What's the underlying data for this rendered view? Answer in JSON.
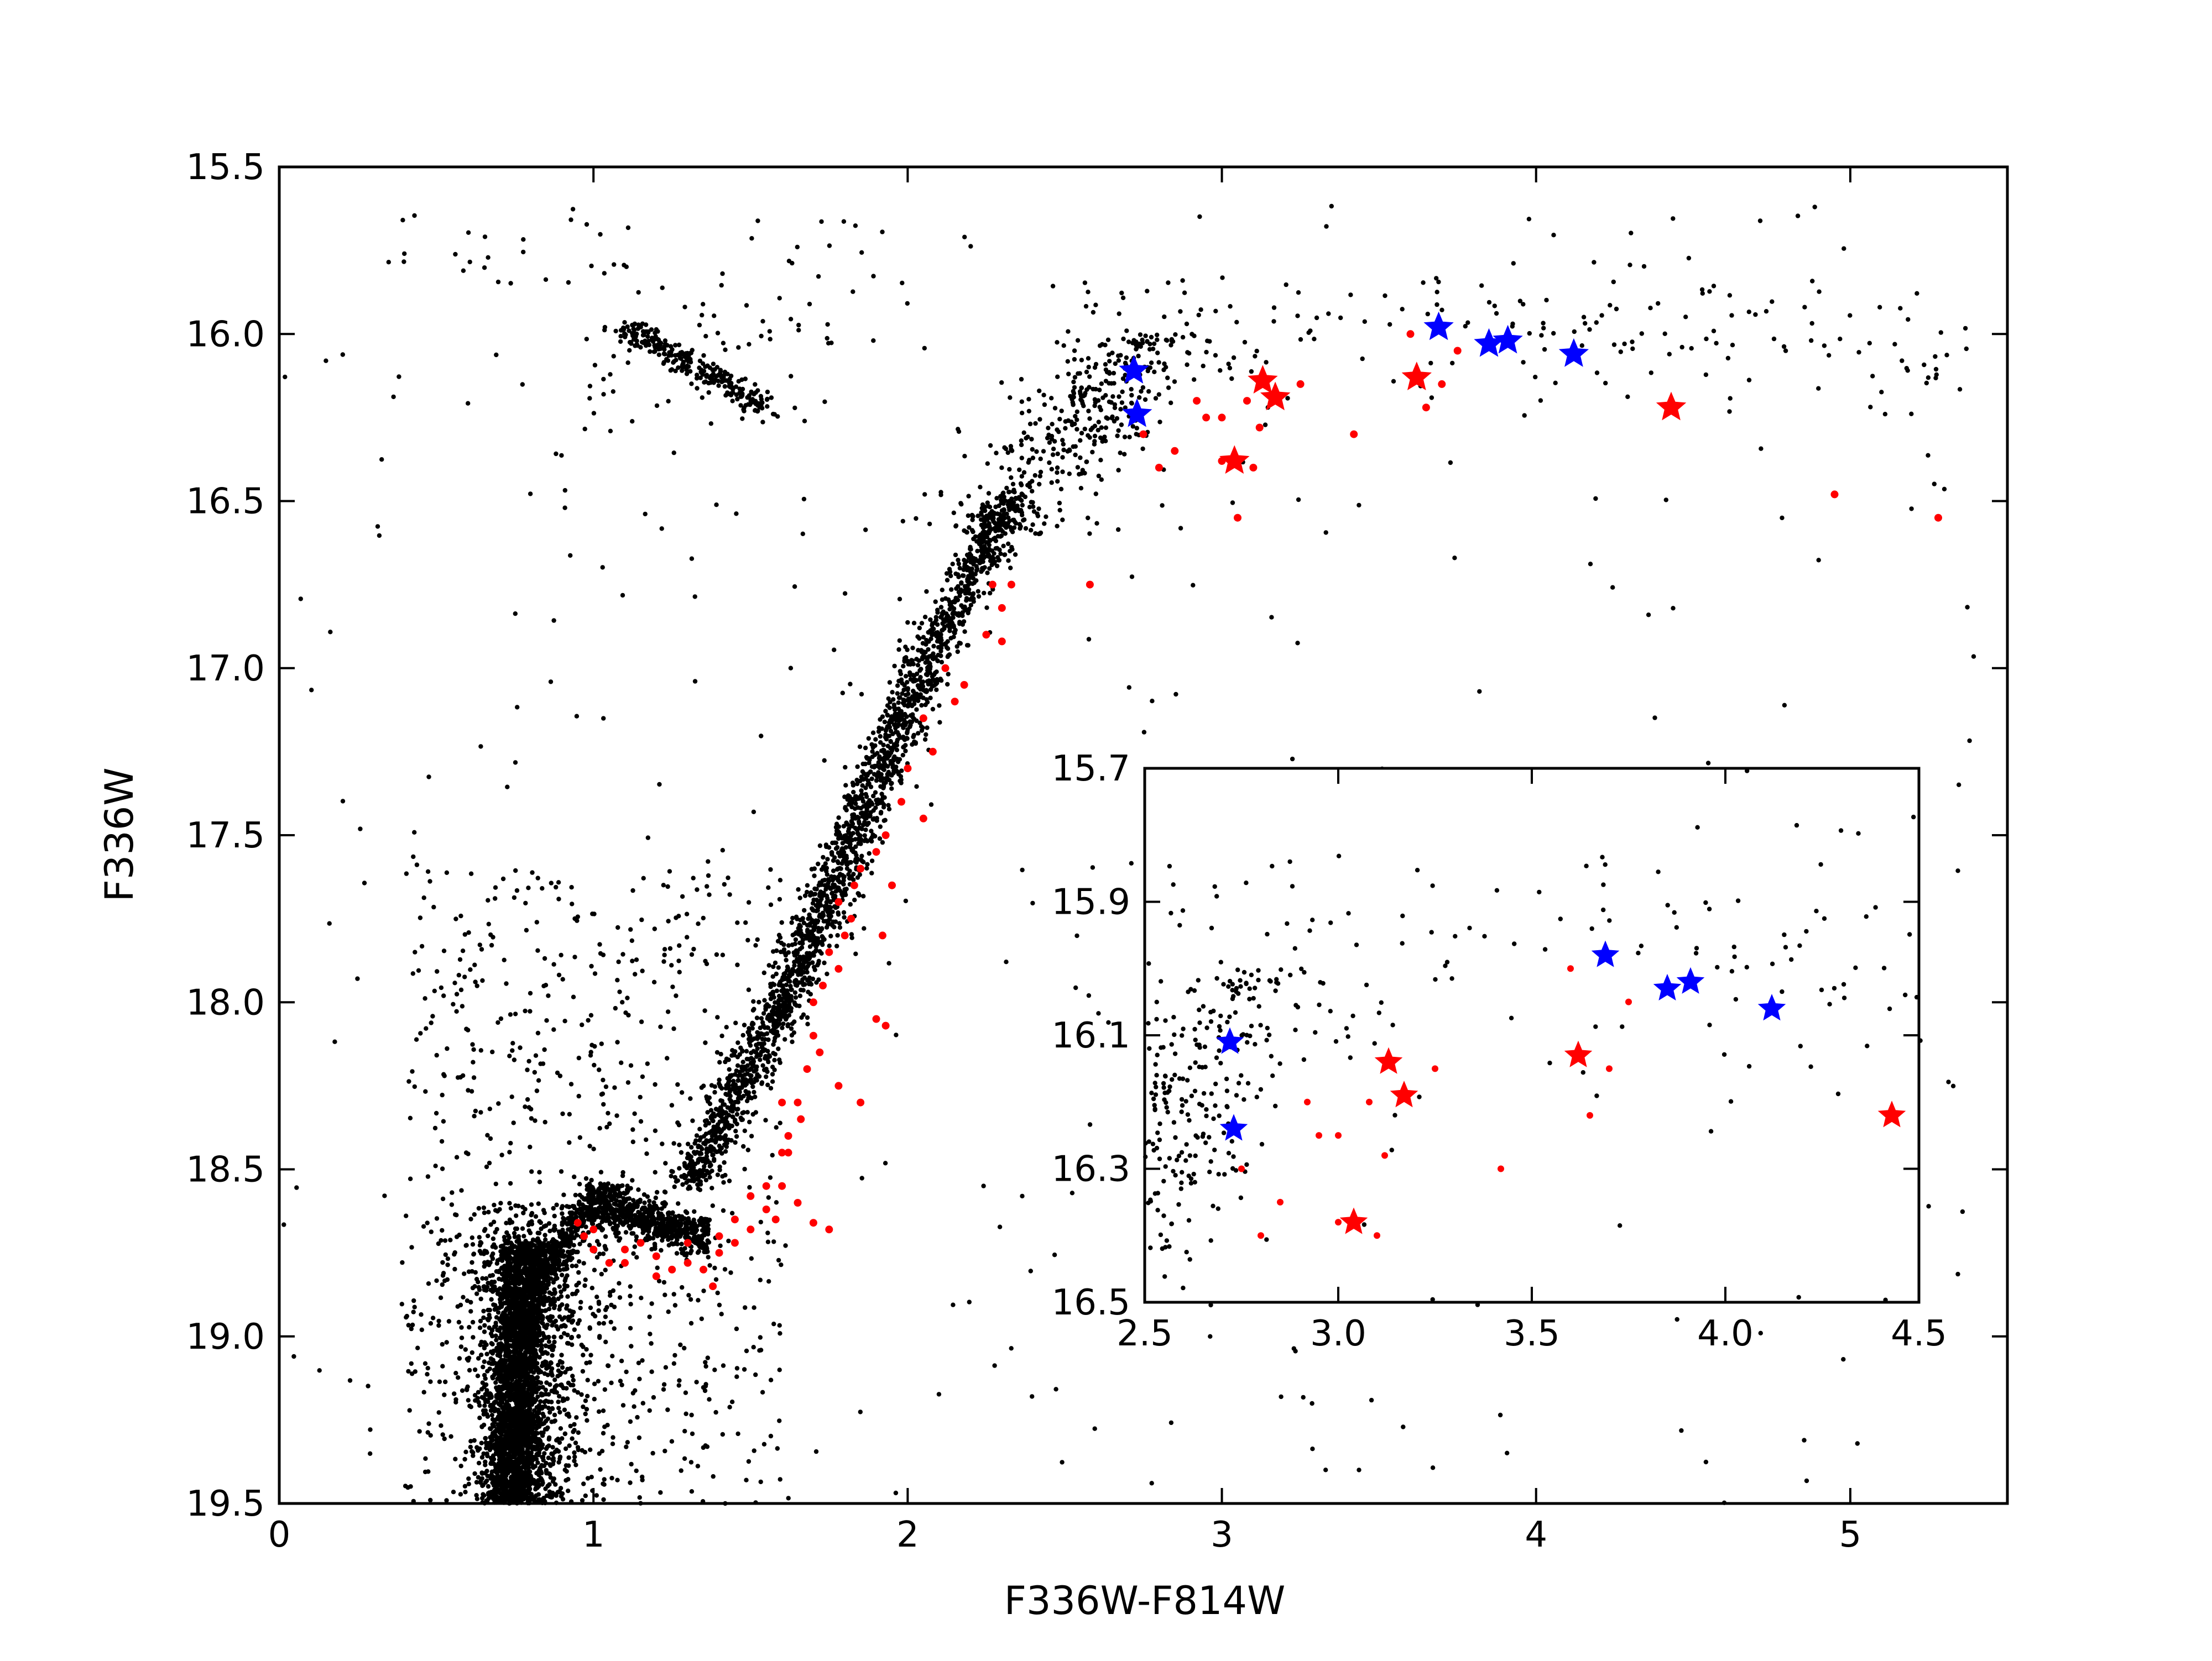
{
  "chart_data": {
    "type": "scatter",
    "title": "",
    "xlabel": "F336W-F814W",
    "ylabel": "F336W",
    "xlim": [
      0,
      5.5
    ],
    "ylim": [
      19.5,
      15.5
    ],
    "y_inverted": true,
    "x_ticks": [
      0,
      1,
      2,
      3,
      4,
      5
    ],
    "x_tick_labels": [
      "0",
      "1",
      "2",
      "3",
      "4",
      "5"
    ],
    "y_ticks": [
      15.5,
      16.0,
      16.5,
      17.0,
      17.5,
      18.0,
      18.5,
      19.0,
      19.5
    ],
    "y_tick_labels": [
      "15.5",
      "16.0",
      "16.5",
      "17.0",
      "17.5",
      "18.0",
      "18.5",
      "19.0",
      "19.5"
    ],
    "grid": false,
    "legend": "none",
    "colors": {
      "background_stars": "#000000",
      "red_points": "#ff0000",
      "red_stars": "#ff0000",
      "blue_stars": "#0000ff"
    },
    "series": [
      {
        "marker": "dot",
        "color": "#ff0000",
        "points": [
          [
            2.27,
            16.75
          ],
          [
            2.3,
            16.82
          ],
          [
            2.33,
            16.75
          ],
          [
            2.25,
            16.9
          ],
          [
            2.3,
            16.92
          ],
          [
            2.18,
            17.05
          ],
          [
            2.12,
            17.0
          ],
          [
            2.15,
            17.1
          ],
          [
            2.05,
            17.15
          ],
          [
            2.08,
            17.25
          ],
          [
            2.0,
            17.3
          ],
          [
            1.98,
            17.4
          ],
          [
            1.93,
            17.5
          ],
          [
            1.9,
            17.55
          ],
          [
            2.05,
            17.45
          ],
          [
            1.85,
            17.6
          ],
          [
            1.83,
            17.65
          ],
          [
            1.78,
            17.7
          ],
          [
            1.8,
            17.8
          ],
          [
            1.75,
            17.85
          ],
          [
            1.73,
            17.95
          ],
          [
            1.78,
            17.9
          ],
          [
            1.82,
            17.75
          ],
          [
            1.7,
            18.1
          ],
          [
            1.68,
            18.2
          ],
          [
            1.65,
            18.3
          ],
          [
            1.62,
            18.4
          ],
          [
            1.6,
            18.45
          ],
          [
            1.7,
            18.0
          ],
          [
            1.72,
            18.15
          ],
          [
            1.66,
            18.35
          ],
          [
            1.9,
            18.05
          ],
          [
            1.93,
            18.07
          ],
          [
            1.78,
            18.25
          ],
          [
            1.85,
            18.3
          ],
          [
            1.92,
            17.8
          ],
          [
            1.95,
            17.65
          ],
          [
            1.6,
            18.55
          ],
          [
            1.65,
            18.6
          ],
          [
            1.55,
            18.62
          ],
          [
            1.5,
            18.68
          ],
          [
            1.45,
            18.72
          ],
          [
            1.4,
            18.75
          ],
          [
            1.35,
            18.8
          ],
          [
            1.3,
            18.78
          ],
          [
            1.25,
            18.8
          ],
          [
            1.2,
            18.76
          ],
          [
            1.15,
            18.72
          ],
          [
            1.1,
            18.74
          ],
          [
            1.05,
            18.78
          ],
          [
            1.0,
            18.74
          ],
          [
            0.97,
            18.7
          ],
          [
            0.95,
            18.66
          ],
          [
            1.0,
            18.68
          ],
          [
            1.1,
            18.78
          ],
          [
            1.2,
            18.82
          ],
          [
            1.3,
            18.72
          ],
          [
            1.4,
            18.7
          ],
          [
            1.5,
            18.58
          ],
          [
            1.55,
            18.55
          ],
          [
            1.58,
            18.65
          ],
          [
            1.7,
            18.66
          ],
          [
            1.75,
            18.68
          ],
          [
            1.45,
            18.65
          ],
          [
            1.38,
            18.85
          ],
          [
            1.6,
            18.3
          ],
          [
            1.62,
            18.45
          ],
          [
            2.58,
            16.75
          ],
          [
            2.75,
            16.3
          ],
          [
            2.85,
            16.35
          ],
          [
            2.8,
            16.4
          ],
          [
            2.92,
            16.2
          ],
          [
            3.0,
            16.25
          ],
          [
            3.08,
            16.2
          ],
          [
            3.12,
            16.28
          ],
          [
            3.05,
            16.55
          ],
          [
            3.65,
            16.22
          ],
          [
            3.7,
            16.15
          ],
          [
            3.75,
            16.05
          ],
          [
            3.6,
            16.0
          ],
          [
            3.42,
            16.3
          ],
          [
            4.95,
            16.48
          ],
          [
            5.28,
            16.55
          ],
          [
            3.25,
            16.15
          ],
          [
            3.0,
            16.38
          ],
          [
            3.1,
            16.4
          ],
          [
            2.95,
            16.25
          ]
        ]
      },
      {
        "marker": "star",
        "color": "#ff0000",
        "points": [
          [
            3.04,
            16.38
          ],
          [
            3.13,
            16.14
          ],
          [
            3.17,
            16.19
          ],
          [
            3.62,
            16.13
          ],
          [
            4.43,
            16.22
          ]
        ]
      },
      {
        "marker": "star",
        "color": "#0000ff",
        "points": [
          [
            2.72,
            16.11
          ],
          [
            2.73,
            16.24
          ],
          [
            3.69,
            15.98
          ],
          [
            3.85,
            16.03
          ],
          [
            3.91,
            16.02
          ],
          [
            4.12,
            16.06
          ]
        ]
      }
    ],
    "inset": {
      "xlim": [
        2.5,
        4.5
      ],
      "ylim": [
        16.5,
        15.7
      ],
      "x_ticks": [
        2.5,
        3.0,
        3.5,
        4.0,
        4.5
      ],
      "x_tick_labels": [
        "2.5",
        "3.0",
        "3.5",
        "4.0",
        "4.5"
      ],
      "y_ticks": [
        15.7,
        15.9,
        16.1,
        16.3,
        16.5
      ],
      "y_tick_labels": [
        "15.7",
        "15.9",
        "16.1",
        "16.3",
        "16.5"
      ]
    }
  }
}
